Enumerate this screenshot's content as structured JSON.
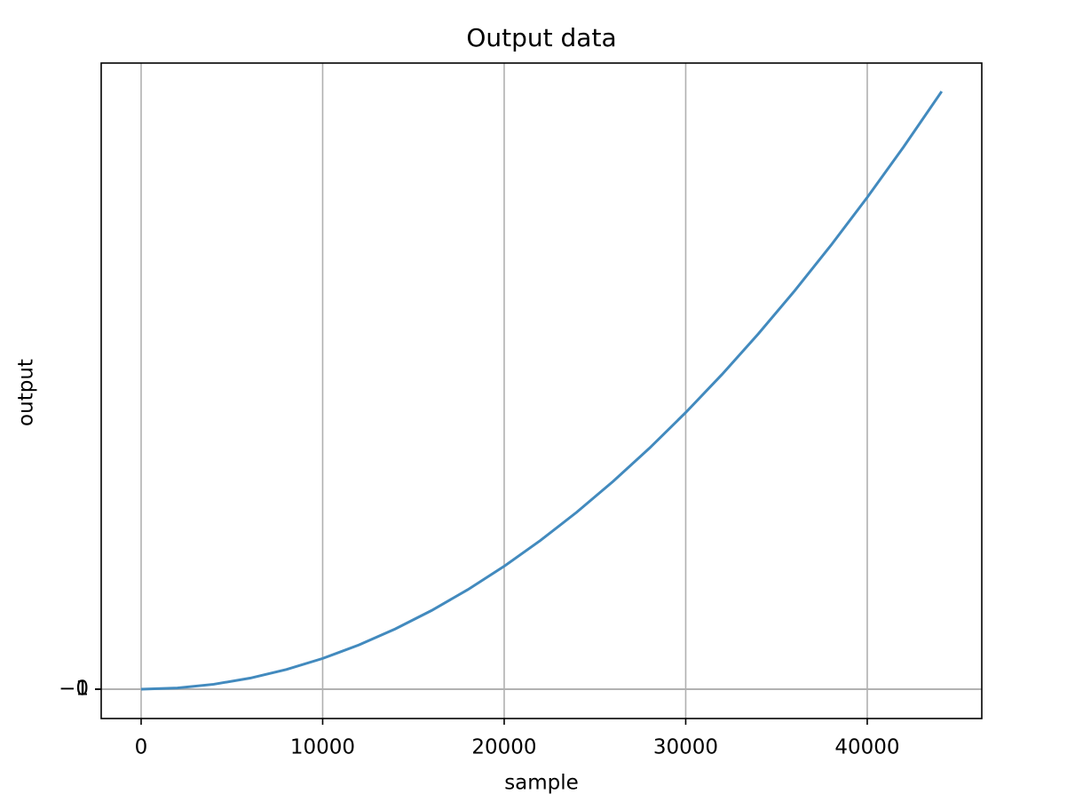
{
  "chart_data": {
    "type": "line",
    "title": "Output data",
    "x_label": "sample",
    "y_label": "output",
    "x": [
      0,
      2000,
      4000,
      6000,
      8000,
      10000,
      12000,
      14000,
      16000,
      18000,
      20000,
      22000,
      24000,
      26000,
      28000,
      30000,
      32000,
      34000,
      36000,
      38000,
      40000,
      42000,
      44000,
      44100
    ],
    "series": [
      {
        "name": "output",
        "color": "#428abe",
        "values": [
          0,
          4000000,
          16000000,
          36000000,
          64000000,
          100000000,
          144000000,
          196000000,
          256000000,
          324000000,
          400000000,
          484000000,
          576000000,
          676000000,
          784000000,
          900000000,
          1024000000,
          1156000000,
          1296000000,
          1444000000,
          1600000000,
          1764000000,
          1936000000,
          1944810000
        ]
      }
    ],
    "xlim": [
      -2200,
      46310
    ],
    "xticks": [
      0,
      10000,
      20000,
      30000,
      40000
    ],
    "ylim": [
      -95400000,
      2037000000
    ],
    "yticks": [
      {
        "value": -1,
        "label": "−1"
      },
      0,
      1
    ],
    "grid": true
  }
}
